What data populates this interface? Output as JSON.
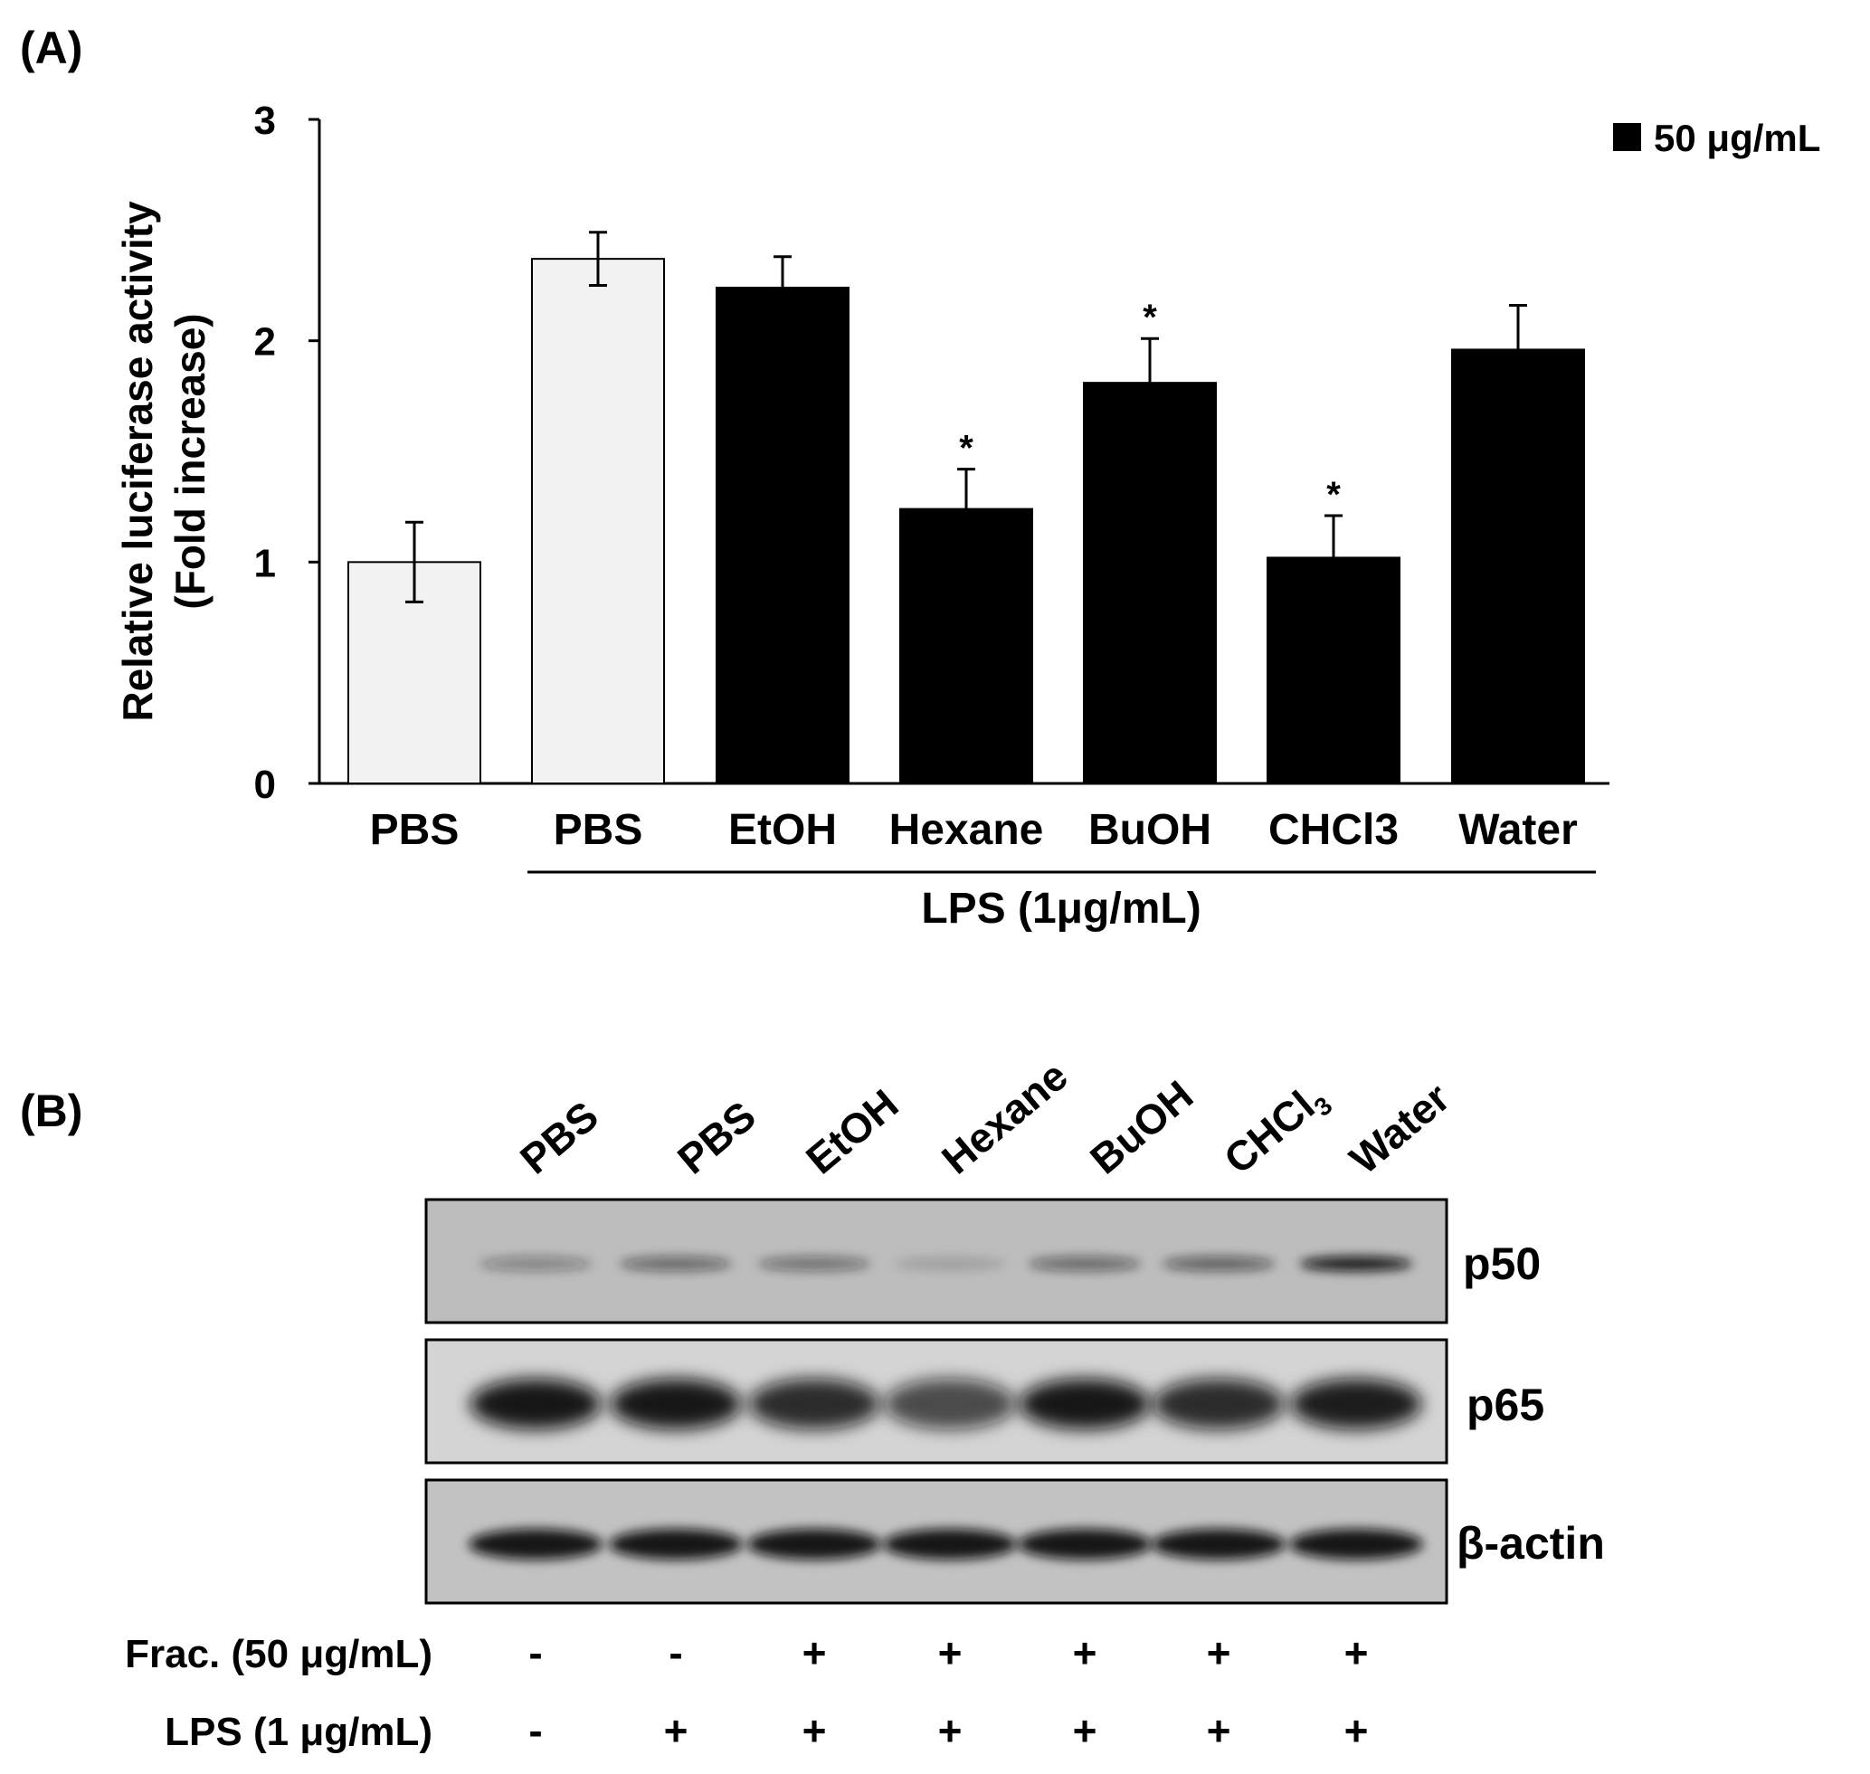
{
  "panel_a": {
    "label": "(A)",
    "legend": {
      "label": "50 μg/mL",
      "color": "#000000"
    },
    "group_label": "LPS (1μg/mL)",
    "ylabel_line1": "Relative luciferase activity",
    "ylabel_line2": "(Fold increase)"
  },
  "chart_data": {
    "type": "bar",
    "categories": [
      "PBS",
      "PBS",
      "EtOH",
      "Hexane",
      "BuOH",
      "CHCl3",
      "Water"
    ],
    "values": [
      1.0,
      2.37,
      2.24,
      1.24,
      1.81,
      1.02,
      1.96
    ],
    "errors": [
      0.18,
      0.12,
      0.14,
      0.18,
      0.2,
      0.19,
      0.2
    ],
    "significant": [
      false,
      false,
      false,
      true,
      true,
      true,
      false
    ],
    "significance_marker": "*",
    "fill_colors": [
      "#f2f2f2",
      "#f2f2f2",
      "#000000",
      "#000000",
      "#000000",
      "#000000",
      "#000000"
    ],
    "ylim": [
      0,
      3
    ],
    "yticks": [
      "0",
      "1",
      "2",
      "3"
    ],
    "xlabel": "LPS (1μg/mL)",
    "ylabel": "Relative luciferase activity (Fold increase)",
    "legend_position": "top-right",
    "grid": false
  },
  "panel_b": {
    "label": "(B)",
    "lanes": [
      "PBS",
      "PBS",
      "EtOH",
      "Hexane",
      "BuOH",
      "CHCl3",
      "Water"
    ],
    "band_labels": [
      "p50",
      "p65",
      "β-actin"
    ],
    "p50_intensity": [
      0.35,
      0.5,
      0.45,
      0.15,
      0.5,
      0.55,
      0.95
    ],
    "p65_intensity": [
      0.95,
      0.95,
      0.85,
      0.7,
      0.95,
      0.85,
      0.92
    ],
    "actin_intensity": [
      0.95,
      0.95,
      0.95,
      0.95,
      0.95,
      0.95,
      0.95
    ],
    "frac_label": "Frac. (50 μg/mL)",
    "frac_values": [
      "-",
      "-",
      "+",
      "+",
      "+",
      "+",
      "+"
    ],
    "lps_label": "LPS (1 μg/mL)",
    "lps_values": [
      "-",
      "+",
      "+",
      "+",
      "+",
      "+",
      "+"
    ]
  }
}
